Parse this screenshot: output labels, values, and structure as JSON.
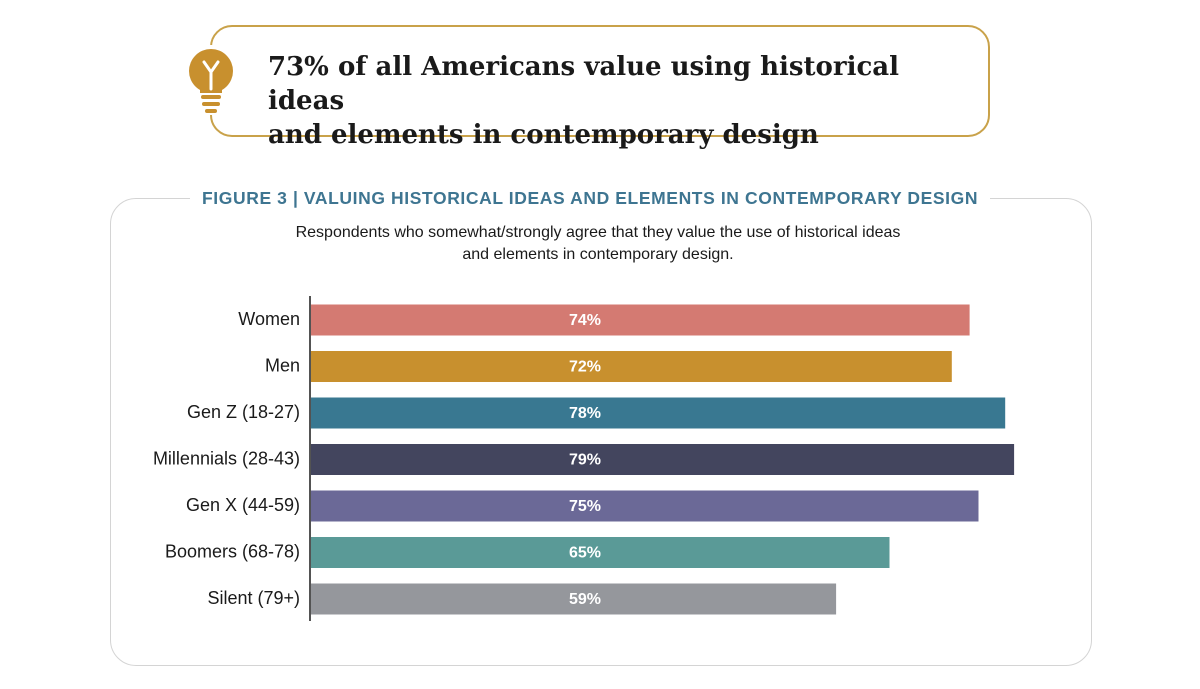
{
  "callout": {
    "icon": "lightbulb-icon",
    "line1": "73% of all Americans value using historical ideas",
    "line2": "and elements in contemporary design",
    "accent_color": "#c9a24a",
    "bulb_color": "#c8902e"
  },
  "figure": {
    "title": "FIGURE 3  |  VALUING HISTORICAL IDEAS AND ELEMENTS IN CONTEMPORARY DESIGN",
    "subtitle_line1": "Respondents who somewhat/strongly agree that they value the use of historical ideas",
    "subtitle_line2": "and elements in contemporary design.",
    "title_color": "#3e7591"
  },
  "chart_data": {
    "type": "bar",
    "orientation": "horizontal",
    "title": "VALUING HISTORICAL IDEAS AND ELEMENTS IN CONTEMPORARY DESIGN",
    "xlabel": "",
    "ylabel": "",
    "xlim": [
      0,
      100
    ],
    "grid": false,
    "categories": [
      "Women",
      "Men",
      "Gen Z (18-27)",
      "Millennials (28-43)",
      "Gen X (44-59)",
      "Boomers (68-78)",
      "Silent (79+)"
    ],
    "values": [
      74,
      72,
      78,
      79,
      75,
      65,
      59
    ],
    "labels": [
      "74%",
      "72%",
      "78%",
      "79%",
      "75%",
      "65%",
      "59%"
    ],
    "colors": [
      "#d47a72",
      "#c8902e",
      "#397891",
      "#43455e",
      "#6b6997",
      "#5a9a97",
      "#95979c"
    ]
  }
}
